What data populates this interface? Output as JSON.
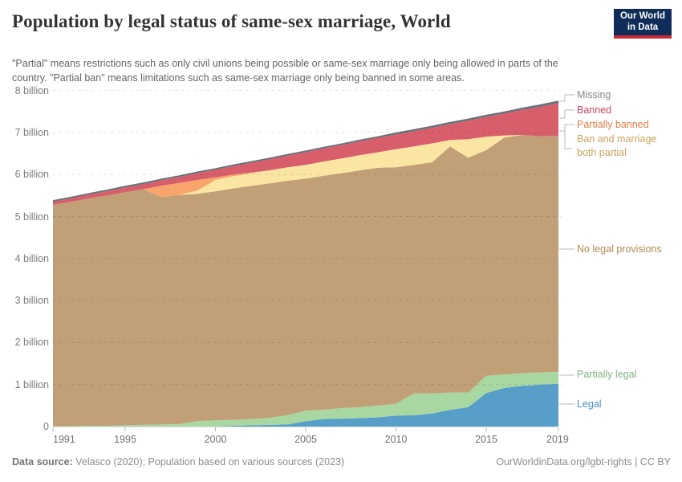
{
  "header": {
    "title": "Population by legal status of same-sex marriage, World",
    "subtitle": "\"Partial\" means restrictions such as only civil unions being possible or same-sex marriage only being allowed in parts of the country. \"Partial ban\" means limitations such as same-sex marriage only being banned in some areas.",
    "logo": {
      "line1": "Our World",
      "line2": "in Data",
      "bg": "#102d59",
      "stripe": "#cc2936"
    }
  },
  "chart_data": {
    "type": "area",
    "stacked": true,
    "title": "Population by legal status of same-sex marriage, World",
    "xlabel": "",
    "ylabel": "",
    "unit": "billions of people",
    "xlim": [
      1991,
      2019
    ],
    "ylim": [
      0,
      8
    ],
    "grid": "horizontal-dashed",
    "legend_position": "right",
    "x": [
      1991,
      1992,
      1993,
      1994,
      1995,
      1996,
      1997,
      1998,
      1999,
      2000,
      2001,
      2002,
      2003,
      2004,
      2005,
      2006,
      2007,
      2008,
      2009,
      2010,
      2011,
      2012,
      2013,
      2014,
      2015,
      2016,
      2017,
      2018,
      2019
    ],
    "x_ticks": [
      1991,
      1995,
      2000,
      2005,
      2010,
      2015,
      2019
    ],
    "x_tick_labels": [
      "1991",
      "1995",
      "2000",
      "2005",
      "2010",
      "2015",
      "2019"
    ],
    "y_ticks": [
      {
        "v": 0,
        "label": "0"
      },
      {
        "v": 1,
        "label": "1 billion"
      },
      {
        "v": 2,
        "label": "2 billion"
      },
      {
        "v": 3,
        "label": "3 billion"
      },
      {
        "v": 4,
        "label": "4 billion"
      },
      {
        "v": 5,
        "label": "5 billion"
      },
      {
        "v": 6,
        "label": "6 billion"
      },
      {
        "v": 7,
        "label": "7 billion"
      },
      {
        "v": 8,
        "label": "8 billion"
      }
    ],
    "series": [
      {
        "id": "legal",
        "label": "Legal",
        "color": "#579fc9",
        "label_color": "#4b8fc4",
        "values": [
          0,
          0,
          0,
          0,
          0,
          0,
          0,
          0,
          0,
          0,
          0.02,
          0.03,
          0.04,
          0.05,
          0.13,
          0.18,
          0.19,
          0.2,
          0.22,
          0.26,
          0.27,
          0.31,
          0.4,
          0.46,
          0.8,
          0.92,
          0.97,
          1.0,
          1.02
        ]
      },
      {
        "id": "partially_legal",
        "label": "Partially legal",
        "color": "#a9d7a2",
        "label_color": "#81b183",
        "values": [
          0.01,
          0.01,
          0.02,
          0.02,
          0.03,
          0.04,
          0.05,
          0.06,
          0.13,
          0.15,
          0.14,
          0.15,
          0.17,
          0.22,
          0.25,
          0.22,
          0.25,
          0.26,
          0.28,
          0.28,
          0.52,
          0.48,
          0.41,
          0.35,
          0.41,
          0.32,
          0.3,
          0.29,
          0.28
        ]
      },
      {
        "id": "no_legal_provisions",
        "label": "No legal provisions",
        "color": "#c2a077",
        "label_color": "#b1894f",
        "values": [
          5.27,
          5.34,
          5.41,
          5.48,
          5.55,
          5.61,
          5.41,
          5.45,
          5.41,
          5.45,
          5.51,
          5.55,
          5.58,
          5.58,
          5.52,
          5.57,
          5.59,
          5.64,
          5.66,
          5.63,
          5.44,
          5.5,
          5.86,
          5.59,
          5.37,
          5.64,
          5.67,
          5.62,
          5.62
        ]
      },
      {
        "id": "ban_and_marriage_both_partial",
        "label": "Ban and marriage both partial",
        "color": "#fae5a3",
        "label_color": "#cba35c",
        "values": [
          0,
          0,
          0,
          0,
          0,
          0,
          0,
          0,
          0.08,
          0.27,
          0.29,
          0.3,
          0.31,
          0.32,
          0.33,
          0.34,
          0.35,
          0.36,
          0.37,
          0.43,
          0.44,
          0.45,
          0.15,
          0.44,
          0.32,
          0.05,
          0,
          0,
          0
        ]
      },
      {
        "id": "partially_banned",
        "label": "Partially banned",
        "color": "#f8a56c",
        "label_color": "#dd7e45",
        "values": [
          0,
          0,
          0,
          0,
          0,
          0,
          0.27,
          0.29,
          0.25,
          0.06,
          0.04,
          0.02,
          0,
          0,
          0,
          0,
          0,
          0,
          0,
          0,
          0,
          0,
          0,
          0,
          0,
          0,
          0,
          0,
          0
        ]
      },
      {
        "id": "banned",
        "label": "Banned",
        "color": "#d85e6b",
        "label_color": "#c7455e",
        "values": [
          0.07,
          0.08,
          0.09,
          0.1,
          0.11,
          0.12,
          0.13,
          0.14,
          0.16,
          0.18,
          0.2,
          0.23,
          0.26,
          0.28,
          0.3,
          0.31,
          0.32,
          0.33,
          0.34,
          0.35,
          0.36,
          0.37,
          0.38,
          0.44,
          0.47,
          0.52,
          0.6,
          0.7,
          0.78
        ]
      },
      {
        "id": "missing",
        "label": "Missing",
        "color": "#6b7078",
        "label_color": "#878787",
        "values": [
          0.04,
          0.04,
          0.04,
          0.04,
          0.04,
          0.04,
          0.04,
          0.04,
          0.04,
          0.04,
          0.04,
          0.04,
          0.04,
          0.04,
          0.04,
          0.04,
          0.04,
          0.04,
          0.04,
          0.05,
          0.05,
          0.05,
          0.05,
          0.05,
          0.05,
          0.05,
          0.05,
          0.06,
          0.06
        ]
      }
    ]
  },
  "footer": {
    "source_label": "Data source:",
    "source_text": "Velasco (2020); Population based on various sources (2023)",
    "right": "OurWorldinData.org/lgbt-rights | CC BY"
  }
}
